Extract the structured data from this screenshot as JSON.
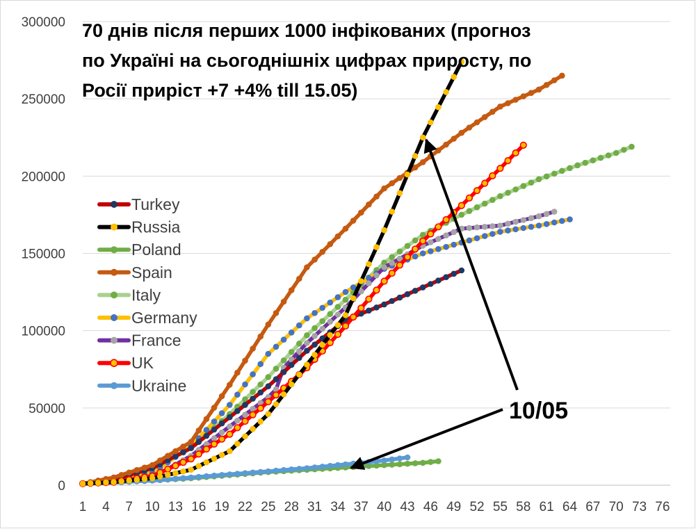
{
  "chart_data": {
    "type": "line",
    "title_lines": [
      "70 днів після перших 1000 інфікованих (прогноз",
      "по Україні на сьогоднішніх цифрах приросту, по",
      "Росії приріст +7 +4% till 15.05)"
    ],
    "x_ticks": [
      1,
      4,
      7,
      10,
      13,
      16,
      19,
      22,
      25,
      28,
      31,
      34,
      37,
      40,
      43,
      46,
      49,
      52,
      55,
      58,
      61,
      64,
      67,
      70,
      73,
      76
    ],
    "y_ticks": [
      0,
      50000,
      100000,
      150000,
      200000,
      250000,
      300000
    ],
    "xlim": [
      1,
      77
    ],
    "ylim": [
      0,
      300000
    ],
    "grid": "horizontal",
    "legend_position": "left",
    "annotation": "10/05",
    "series": [
      {
        "name": "Turkey",
        "line_color": "#c00000",
        "marker_color": "#1f3864",
        "outline": "",
        "x": [
          1,
          5,
          10,
          15,
          20,
          25,
          30,
          35,
          40,
          45,
          50
        ],
        "y": [
          1000,
          3500,
          11000,
          24000,
          44000,
          64000,
          87000,
          107000,
          117000,
          128000,
          139000
        ]
      },
      {
        "name": "Russia",
        "line_color": "#000000",
        "marker_color": "#ffc000",
        "outline": "",
        "x": [
          1,
          5,
          10,
          15,
          20,
          25,
          30,
          35,
          40,
          45,
          50
        ],
        "y": [
          1000,
          2000,
          4500,
          10000,
          22000,
          46000,
          78000,
          110000,
          165000,
          225000,
          274000
        ]
      },
      {
        "name": "Poland",
        "line_color": "#70ad47",
        "marker_color": "#70ad47",
        "outline": "",
        "x": [
          1,
          5,
          10,
          15,
          20,
          25,
          30,
          35,
          40,
          45,
          47
        ],
        "y": [
          1000,
          2000,
          3000,
          4500,
          6500,
          8500,
          10000,
          11500,
          13000,
          14500,
          15500
        ]
      },
      {
        "name": "Spain",
        "line_color": "#c55a11",
        "marker_color": "#c55a11",
        "outline": "",
        "x": [
          1,
          5,
          10,
          15,
          20,
          25,
          30,
          35,
          40,
          45,
          50,
          55,
          60,
          63
        ],
        "y": [
          1000,
          5000,
          13000,
          28000,
          65000,
          104000,
          141000,
          166000,
          192000,
          209000,
          228000,
          245000,
          256000,
          265000
        ],
        "dense": true
      },
      {
        "name": "Italy",
        "line_color": "#a9d18e",
        "marker_color": "#70ad47",
        "outline": "",
        "x": [
          1,
          5,
          10,
          15,
          20,
          25,
          30,
          35,
          40,
          45,
          50,
          55,
          60,
          65,
          70,
          72
        ],
        "y": [
          1000,
          3500,
          10000,
          24000,
          46000,
          70000,
          97000,
          120000,
          144000,
          162000,
          175000,
          187000,
          198000,
          207000,
          215000,
          219000
        ]
      },
      {
        "name": "Germany",
        "line_color": "#ffc000",
        "marker_color": "#4472c4",
        "outline": "",
        "x": [
          1,
          5,
          10,
          15,
          20,
          25,
          30,
          35,
          40,
          45,
          50,
          55,
          60,
          64
        ],
        "y": [
          1000,
          3000,
          8000,
          25000,
          52000,
          85000,
          108000,
          125000,
          140000,
          150000,
          157000,
          164000,
          168000,
          172000
        ]
      },
      {
        "name": "France",
        "line_color": "#7030a0",
        "marker_color": "#a5a5a5",
        "outline": "",
        "x": [
          1,
          5,
          10,
          15,
          20,
          25,
          26,
          27,
          30,
          35,
          40,
          45,
          50,
          55,
          60,
          62
        ],
        "y": [
          1000,
          2000,
          5000,
          19000,
          38000,
          57000,
          62000,
          76000,
          92000,
          115000,
          141000,
          155000,
          166000,
          168000,
          174000,
          177000
        ]
      },
      {
        "name": "UK",
        "line_color": "#ff0000",
        "marker_color": "#ffc000",
        "outline": "#ff0000",
        "x": [
          1,
          5,
          10,
          15,
          20,
          25,
          30,
          35,
          40,
          45,
          50,
          55,
          58
        ],
        "y": [
          1000,
          2000,
          6000,
          17000,
          33000,
          54000,
          76000,
          103000,
          132000,
          158000,
          181000,
          205000,
          220000
        ]
      },
      {
        "name": "Ukraine",
        "line_color": "#5b9bd5",
        "marker_color": "#5b9bd5",
        "outline": "",
        "x": [
          1,
          5,
          10,
          15,
          20,
          25,
          30,
          35,
          40,
          43
        ],
        "y": [
          1000,
          1700,
          3000,
          5000,
          7000,
          9000,
          11000,
          13500,
          16000,
          18000
        ]
      }
    ]
  }
}
